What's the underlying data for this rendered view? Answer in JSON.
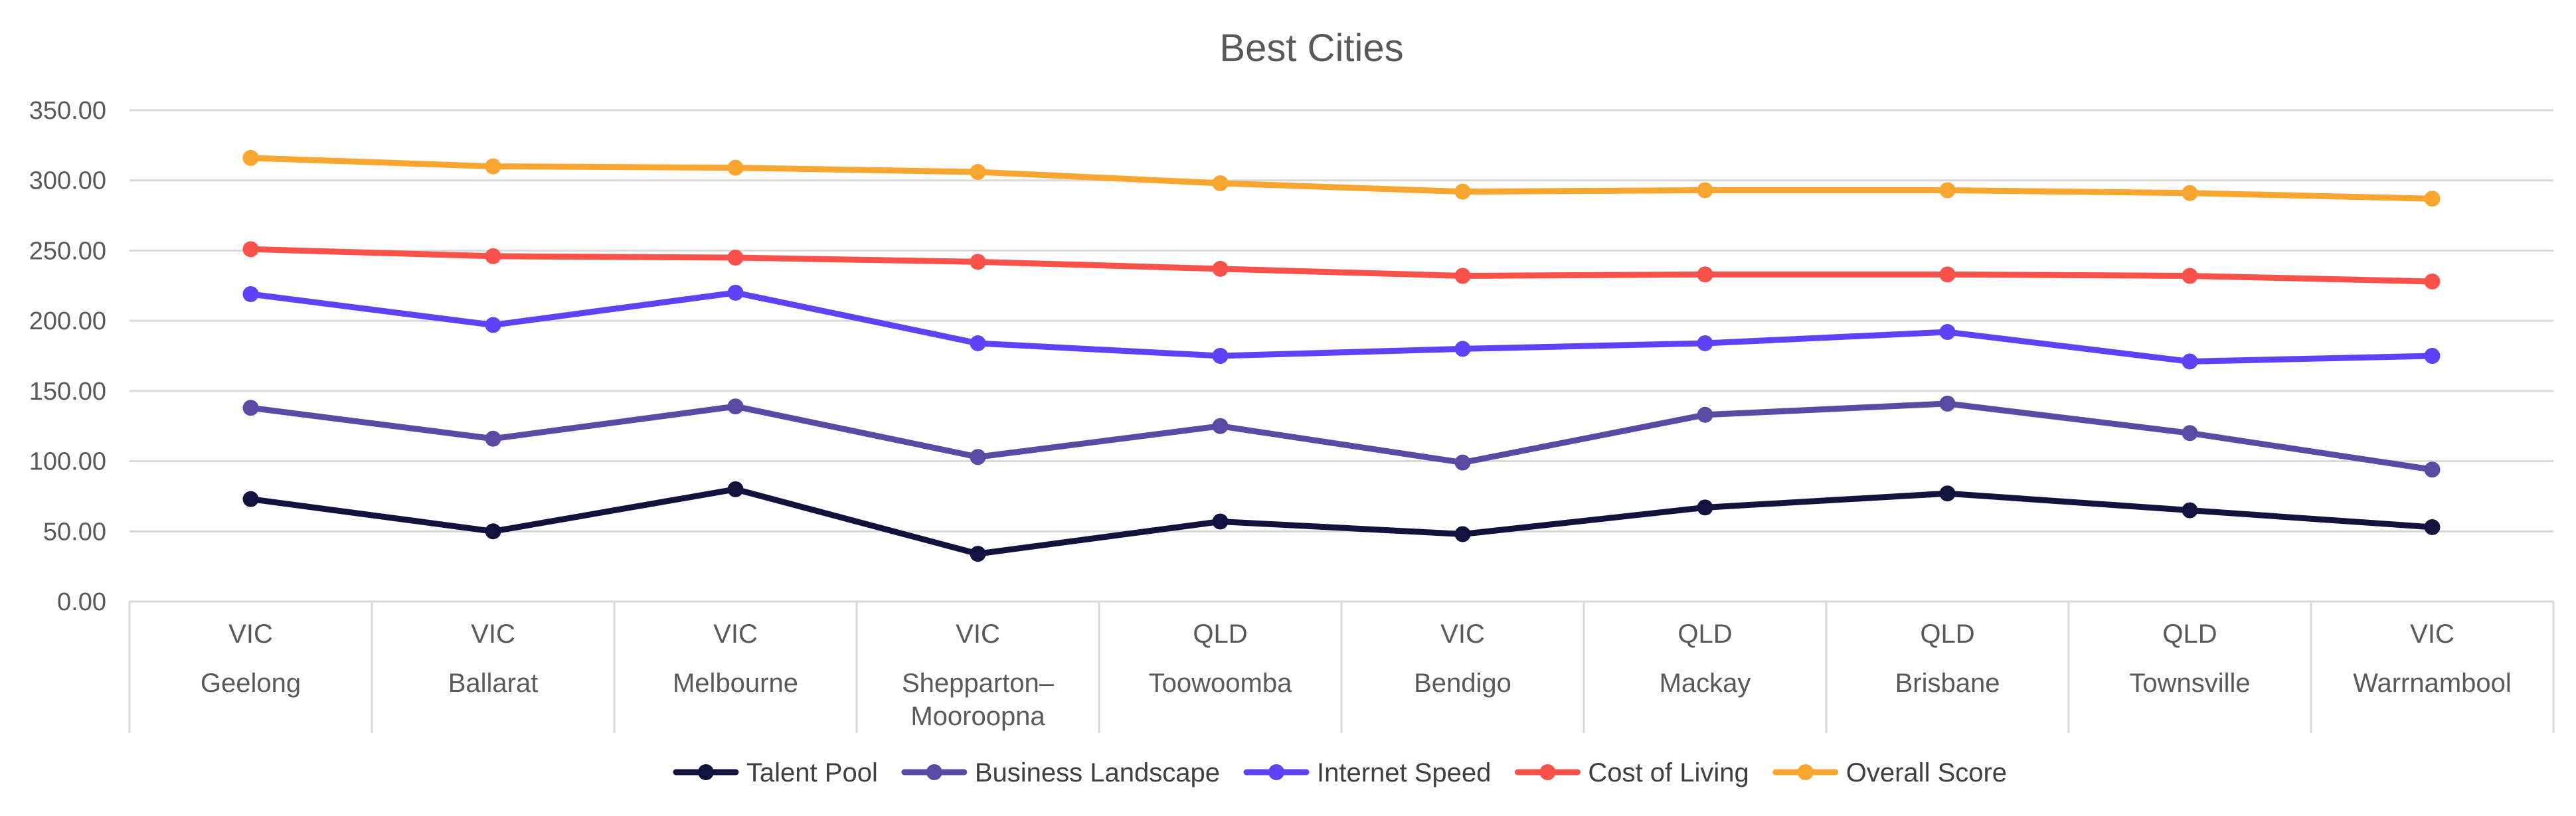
{
  "chart_data": {
    "type": "line",
    "title": "Best Cities",
    "xlabel": "",
    "ylabel": "",
    "ylim": [
      0,
      350
    ],
    "yticks": [
      "0.00",
      "50.00",
      "100.00",
      "150.00",
      "200.00",
      "250.00",
      "300.00",
      "350.00"
    ],
    "grid": true,
    "legend_position": "bottom",
    "categories": [
      {
        "state": "VIC",
        "city": "Geelong"
      },
      {
        "state": "VIC",
        "city": "Ballarat"
      },
      {
        "state": "VIC",
        "city": "Melbourne"
      },
      {
        "state": "VIC",
        "city": "Shepparton–Mooroopna"
      },
      {
        "state": "QLD",
        "city": "Toowoomba"
      },
      {
        "state": "VIC",
        "city": "Bendigo"
      },
      {
        "state": "QLD",
        "city": "Mackay"
      },
      {
        "state": "QLD",
        "city": "Brisbane"
      },
      {
        "state": "QLD",
        "city": "Townsville"
      },
      {
        "state": "VIC",
        "city": "Warrnambool"
      }
    ],
    "series": [
      {
        "name": "Talent Pool",
        "color": "#12123f",
        "values": [
          73,
          50,
          80,
          34,
          57,
          48,
          67,
          77,
          65,
          53
        ]
      },
      {
        "name": "Business Landscape",
        "color": "#5b4aa3",
        "values": [
          138,
          116,
          139,
          103,
          125,
          99,
          133,
          141,
          120,
          94
        ]
      },
      {
        "name": "Internet Speed",
        "color": "#5d43f5",
        "values": [
          219,
          197,
          220,
          184,
          175,
          180,
          184,
          192,
          171,
          175
        ]
      },
      {
        "name": "Cost of Living",
        "color": "#f9524b",
        "values": [
          251,
          246,
          245,
          242,
          237,
          232,
          233,
          233,
          232,
          228
        ]
      },
      {
        "name": "Overall Score",
        "color": "#f9a630",
        "values": [
          316,
          310,
          309,
          306,
          298,
          292,
          293,
          293,
          291,
          287
        ]
      }
    ]
  }
}
